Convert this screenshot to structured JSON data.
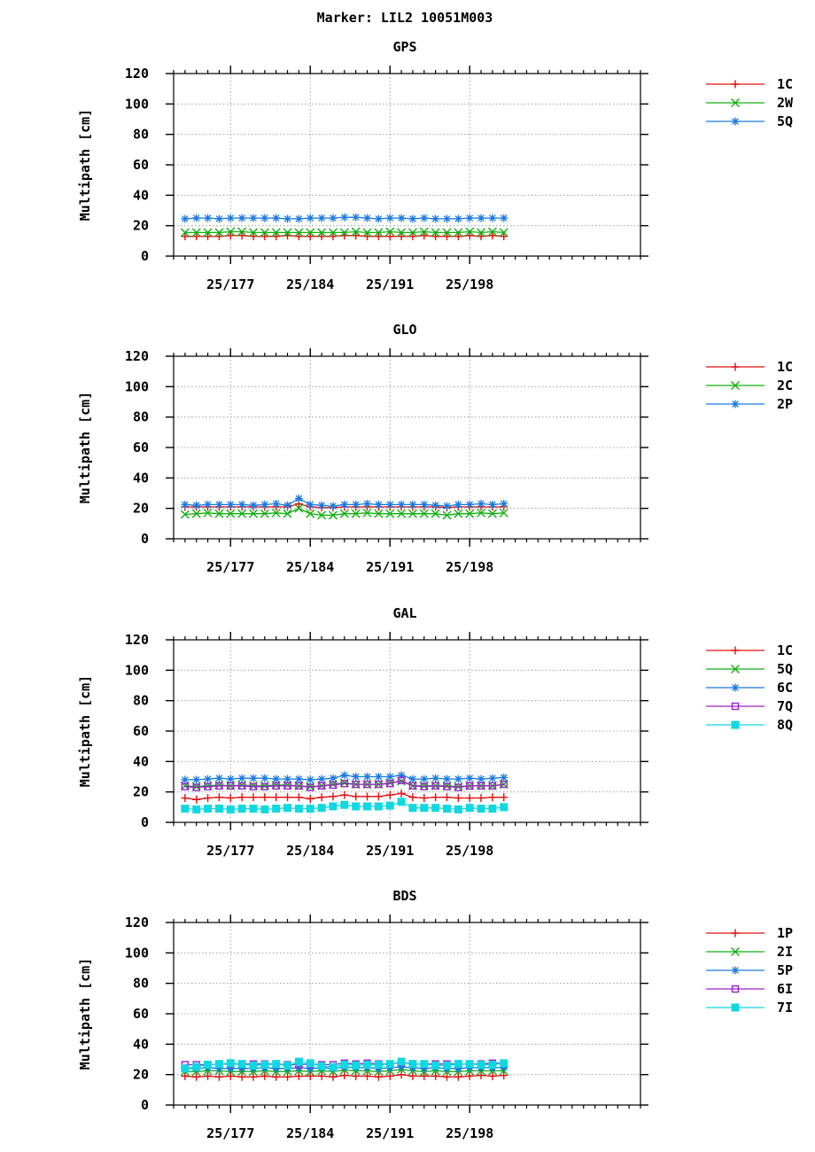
{
  "title": "Marker: LIL2 10051M003",
  "colors": {
    "1C": "#e01010",
    "1P": "#e01010",
    "2W": "#10b010",
    "2C": "#10b010",
    "5Q": "#10b010",
    "2I": "#10b010",
    "5QGPS": "#1a7ae0",
    "blue": "#1a7ae0",
    "purple": "#a020d0",
    "cyan": "#10d8e0",
    "grid": "#909090"
  },
  "chart_data": [
    {
      "type": "line",
      "title": "GPS",
      "ylabel": "Multipath [cm]",
      "ylim": [
        0,
        120
      ],
      "yticks": [
        0,
        20,
        40,
        60,
        80,
        100,
        120
      ],
      "xlim": [
        172,
        213
      ],
      "xticks": [
        {
          "value": 177,
          "label": "25/177"
        },
        {
          "value": 184,
          "label": "25/184"
        },
        {
          "value": 191,
          "label": "25/191"
        },
        {
          "value": 198,
          "label": "25/198"
        }
      ],
      "grid": true,
      "legend_position": "outside-right",
      "x": [
        173,
        174,
        175,
        176,
        177,
        178,
        179,
        180,
        181,
        182,
        183,
        184,
        185,
        186,
        187,
        188,
        189,
        190,
        191,
        192,
        193,
        194,
        195,
        196,
        197,
        198,
        199,
        200,
        201
      ],
      "series": [
        {
          "name": "1C",
          "color": "#e01010",
          "marker": "plus",
          "values": [
            13,
            13,
            13,
            13,
            13.5,
            13.5,
            13,
            13,
            13,
            13.5,
            13,
            13,
            13,
            13,
            13.5,
            13.5,
            13,
            13,
            13,
            13,
            13,
            13.5,
            13,
            13,
            13,
            13.5,
            13,
            13.5,
            13
          ]
        },
        {
          "name": "2W",
          "color": "#10b010",
          "marker": "cross",
          "values": [
            15.5,
            15.5,
            15.5,
            15.5,
            16,
            16,
            15.5,
            15.5,
            15.5,
            15.5,
            15.5,
            15.5,
            15.5,
            15.5,
            15.5,
            16,
            15.5,
            15.5,
            16,
            15.5,
            15.5,
            16,
            15.5,
            15.5,
            15.5,
            16,
            15.5,
            16,
            15.5
          ]
        },
        {
          "name": "5Q",
          "color": "#1a7ae0",
          "marker": "star",
          "values": [
            24.5,
            25,
            25,
            24.5,
            25,
            25,
            25,
            25,
            25,
            24.5,
            24.5,
            25,
            25,
            25,
            25.5,
            25.5,
            25,
            24.5,
            25,
            25,
            24.5,
            25,
            24.5,
            24.5,
            24.5,
            25,
            25,
            25,
            25
          ]
        }
      ]
    },
    {
      "type": "line",
      "title": "GLO",
      "ylabel": "Multipath [cm]",
      "ylim": [
        0,
        120
      ],
      "yticks": [
        0,
        20,
        40,
        60,
        80,
        100,
        120
      ],
      "xlim": [
        172,
        213
      ],
      "xticks": [
        {
          "value": 177,
          "label": "25/177"
        },
        {
          "value": 184,
          "label": "25/184"
        },
        {
          "value": 191,
          "label": "25/191"
        },
        {
          "value": 198,
          "label": "25/198"
        }
      ],
      "grid": true,
      "legend_position": "outside-right",
      "x": [
        173,
        174,
        175,
        176,
        177,
        178,
        179,
        180,
        181,
        182,
        183,
        184,
        185,
        186,
        187,
        188,
        189,
        190,
        191,
        192,
        193,
        194,
        195,
        196,
        197,
        198,
        199,
        200,
        201
      ],
      "series": [
        {
          "name": "1C",
          "color": "#e01010",
          "marker": "plus",
          "values": [
            21,
            21,
            21,
            21,
            21,
            21,
            21,
            21,
            21,
            21,
            23,
            21,
            20.5,
            20.5,
            21,
            21,
            21,
            21,
            21,
            21,
            21,
            21,
            21,
            20.5,
            21,
            21,
            21,
            21,
            21
          ]
        },
        {
          "name": "2C",
          "color": "#10b010",
          "marker": "cross",
          "values": [
            16,
            16.5,
            17,
            16.5,
            16.5,
            16.5,
            16.5,
            16.5,
            17,
            16.5,
            20,
            16.5,
            15.5,
            15.5,
            16.5,
            16.5,
            17,
            16.5,
            16.5,
            16.5,
            16.5,
            16.5,
            16.5,
            15.5,
            16.5,
            16.5,
            17,
            16.5,
            17
          ]
        },
        {
          "name": "2P",
          "color": "#1a7ae0",
          "marker": "star",
          "values": [
            22.5,
            22,
            22.5,
            22.5,
            22.5,
            22.5,
            22,
            22.5,
            23,
            22,
            26.5,
            22.5,
            22,
            21.5,
            22.5,
            22.5,
            23,
            22.5,
            22.5,
            22.5,
            22.5,
            22.5,
            22,
            21.5,
            22.5,
            22.5,
            23,
            22.5,
            23
          ]
        }
      ]
    },
    {
      "type": "line",
      "title": "GAL",
      "ylabel": "Multipath [cm]",
      "ylim": [
        0,
        120
      ],
      "yticks": [
        0,
        20,
        40,
        60,
        80,
        100,
        120
      ],
      "xlim": [
        172,
        213
      ],
      "xticks": [
        {
          "value": 177,
          "label": "25/177"
        },
        {
          "value": 184,
          "label": "25/184"
        },
        {
          "value": 191,
          "label": "25/191"
        },
        {
          "value": 198,
          "label": "25/198"
        }
      ],
      "grid": true,
      "legend_position": "outside-right",
      "x": [
        173,
        174,
        175,
        176,
        177,
        178,
        179,
        180,
        181,
        182,
        183,
        184,
        185,
        186,
        187,
        188,
        189,
        190,
        191,
        192,
        193,
        194,
        195,
        196,
        197,
        198,
        199,
        200,
        201
      ],
      "series": [
        {
          "name": "1C",
          "color": "#e01010",
          "marker": "plus",
          "values": [
            16,
            15,
            16,
            16.5,
            16,
            16.5,
            16.5,
            16.5,
            16.5,
            16.5,
            16.5,
            15.5,
            16.5,
            17,
            18,
            17,
            17,
            17,
            18,
            19,
            16.5,
            16,
            16.5,
            16.5,
            16,
            16,
            16,
            16.5,
            16.5
          ]
        },
        {
          "name": "5Q",
          "color": "#10b010",
          "marker": "cross",
          "values": [
            24,
            23.5,
            24,
            24.5,
            24,
            24.5,
            24,
            24,
            24.5,
            24.5,
            24,
            23.5,
            24,
            25,
            26,
            25,
            25,
            25,
            26,
            27,
            24,
            24,
            24,
            24,
            23.5,
            24,
            24,
            24,
            25
          ]
        },
        {
          "name": "6C",
          "color": "#1a7ae0",
          "marker": "star",
          "values": [
            28,
            28,
            28.5,
            29,
            28.5,
            29,
            29,
            29,
            28.5,
            28.5,
            28.5,
            28,
            28.5,
            29,
            31,
            30,
            30,
            30,
            30,
            31,
            28.5,
            28.5,
            29,
            28.5,
            28.5,
            29,
            28.5,
            29,
            29.5
          ]
        },
        {
          "name": "7Q",
          "color": "#a020d0",
          "marker": "square",
          "values": [
            23.5,
            23,
            23.5,
            24,
            24,
            24,
            23.5,
            23.5,
            24,
            24,
            24,
            23,
            24,
            24.5,
            25.5,
            25,
            25,
            25,
            25.5,
            27.5,
            24,
            23.5,
            24,
            23.5,
            23,
            24,
            24,
            24,
            25
          ]
        },
        {
          "name": "8Q",
          "color": "#10d8e0",
          "marker": "filled-square",
          "values": [
            9,
            8.5,
            9,
            9,
            8.5,
            9,
            9,
            8.5,
            9,
            9.5,
            9,
            9,
            9.5,
            10.5,
            11.5,
            10.5,
            10.5,
            10.5,
            11,
            13.5,
            9.5,
            9.5,
            9.5,
            9,
            8.5,
            9.5,
            9,
            9,
            10
          ]
        }
      ]
    },
    {
      "type": "line",
      "title": "BDS",
      "ylabel": "Multipath [cm]",
      "ylim": [
        0,
        120
      ],
      "yticks": [
        0,
        20,
        40,
        60,
        80,
        100,
        120
      ],
      "xlim": [
        172,
        213
      ],
      "xticks": [
        {
          "value": 177,
          "label": "25/177"
        },
        {
          "value": 184,
          "label": "25/184"
        },
        {
          "value": 191,
          "label": "25/191"
        },
        {
          "value": 198,
          "label": "25/198"
        }
      ],
      "grid": true,
      "legend_position": "outside-right",
      "x": [
        173,
        174,
        175,
        176,
        177,
        178,
        179,
        180,
        181,
        182,
        183,
        184,
        185,
        186,
        187,
        188,
        189,
        190,
        191,
        192,
        193,
        194,
        195,
        196,
        197,
        198,
        199,
        200,
        201
      ],
      "series": [
        {
          "name": "1P",
          "color": "#e01010",
          "marker": "plus",
          "values": [
            19,
            18.5,
            19,
            18.5,
            19,
            18.5,
            18.5,
            19,
            18.5,
            18.5,
            19,
            19,
            19,
            18.5,
            19.5,
            19,
            19,
            18.5,
            19,
            20,
            19,
            19,
            19,
            18.5,
            18.5,
            19,
            19.5,
            19,
            19.5
          ]
        },
        {
          "name": "2I",
          "color": "#10b010",
          "marker": "cross",
          "values": [
            22,
            22,
            22.5,
            22.5,
            22,
            22,
            22,
            22.5,
            22,
            22,
            22.5,
            22,
            22.5,
            22,
            23,
            22.5,
            22.5,
            22,
            22.5,
            23.5,
            22.5,
            22,
            22.5,
            22,
            22,
            22.5,
            22.5,
            22.5,
            22.5
          ]
        },
        {
          "name": "5P",
          "color": "#1a7ae0",
          "marker": "star",
          "values": [
            24,
            24,
            24.5,
            24,
            24,
            24,
            24,
            24.5,
            24,
            24,
            24.5,
            24,
            24.5,
            24,
            25,
            24.5,
            24.5,
            24,
            24.5,
            25,
            24.5,
            24,
            24.5,
            24,
            24,
            24.5,
            24.5,
            24.5,
            24.5
          ]
        },
        {
          "name": "6I",
          "color": "#a020d0",
          "marker": "square",
          "values": [
            26.5,
            26.5,
            26.5,
            27,
            27,
            27,
            27,
            27,
            27,
            26.5,
            26.5,
            27,
            26.5,
            26.5,
            27.5,
            27,
            27.5,
            27,
            27,
            28,
            27,
            27,
            27,
            27,
            27,
            27,
            27,
            27.5,
            27.5
          ]
        },
        {
          "name": "7I",
          "color": "#10d8e0",
          "marker": "filled-square",
          "values": [
            24,
            25,
            26.5,
            27,
            27.5,
            27,
            26,
            26.5,
            27,
            26,
            28.5,
            27.5,
            25.5,
            25,
            26.5,
            26,
            26.5,
            26.5,
            27,
            28.5,
            27,
            27,
            26,
            26,
            27,
            27,
            26.5,
            26.5,
            27.5
          ]
        }
      ]
    }
  ]
}
